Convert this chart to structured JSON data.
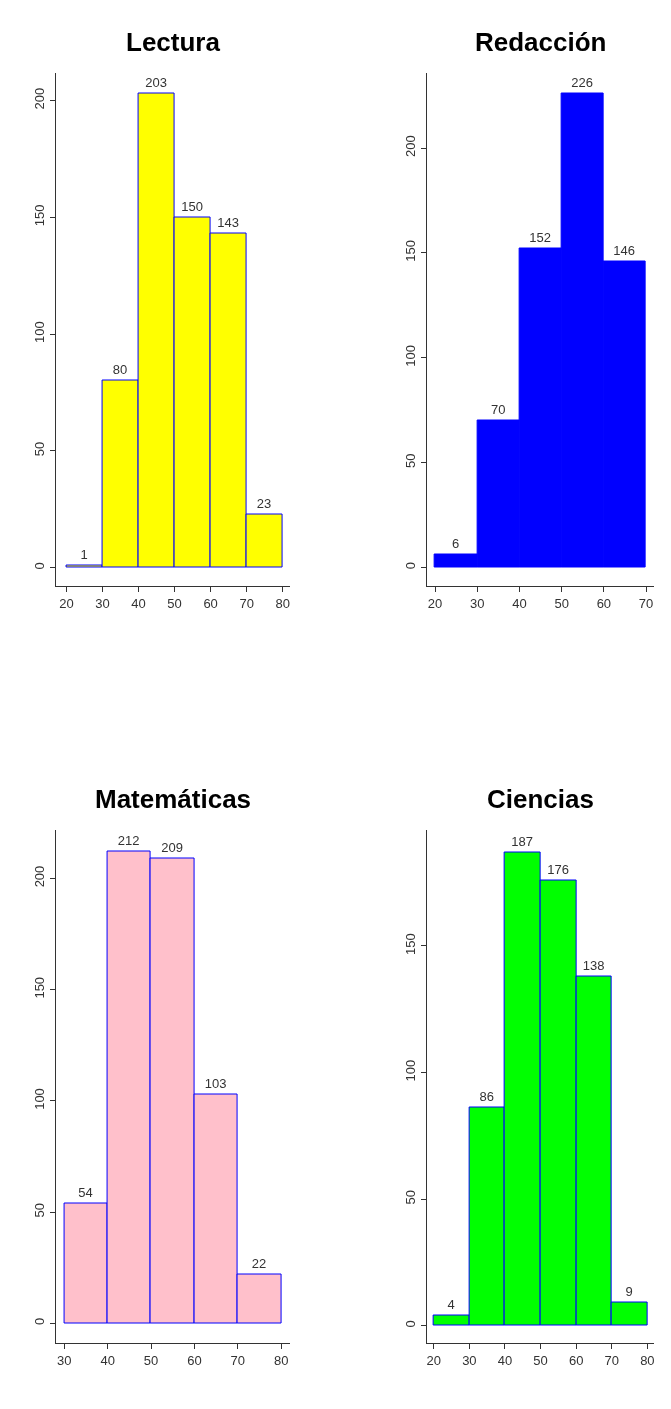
{
  "chart_data": [
    {
      "type": "histogram",
      "title": "Lectura",
      "bins": [
        20,
        30,
        40,
        50,
        60,
        70,
        80
      ],
      "values": [
        1,
        80,
        203,
        150,
        143,
        23
      ],
      "color": "#ffff00",
      "data_labels": true,
      "xlim": [
        17,
        82
      ],
      "xticks": [
        20,
        30,
        40,
        50,
        60,
        70,
        80
      ],
      "ylim": [
        -8,
        212
      ],
      "yticks": [
        0,
        50,
        100,
        150,
        200
      ]
    },
    {
      "type": "histogram",
      "title": "Redacción",
      "bins": [
        20,
        30,
        40,
        50,
        60,
        70
      ],
      "values": [
        6,
        70,
        152,
        226,
        146
      ],
      "color": "#0000ff",
      "data_labels": true,
      "xlim": [
        18,
        72
      ],
      "xticks": [
        20,
        30,
        40,
        50,
        60,
        70
      ],
      "ylim": [
        -9,
        236
      ],
      "yticks": [
        0,
        50,
        100,
        150,
        200
      ]
    },
    {
      "type": "histogram",
      "title": "Matemáticas",
      "bins": [
        30,
        40,
        50,
        60,
        70,
        80
      ],
      "values": [
        54,
        212,
        209,
        103,
        22
      ],
      "color": "#ffc0cb",
      "data_labels": true,
      "xlim": [
        28,
        82
      ],
      "xticks": [
        30,
        40,
        50,
        60,
        70,
        80
      ],
      "ylim": [
        -9,
        222
      ],
      "yticks": [
        0,
        50,
        100,
        150,
        200
      ]
    },
    {
      "type": "histogram",
      "title": "Ciencias",
      "bins": [
        20,
        30,
        40,
        50,
        60,
        70,
        80
      ],
      "values": [
        4,
        86,
        187,
        176,
        138,
        9
      ],
      "color": "#00ff00",
      "data_labels": true,
      "xlim": [
        18,
        82
      ],
      "xticks": [
        20,
        30,
        40,
        50,
        60,
        70,
        80
      ],
      "ylim": [
        -7,
        196
      ],
      "yticks": [
        0,
        50,
        100,
        150
      ]
    }
  ]
}
